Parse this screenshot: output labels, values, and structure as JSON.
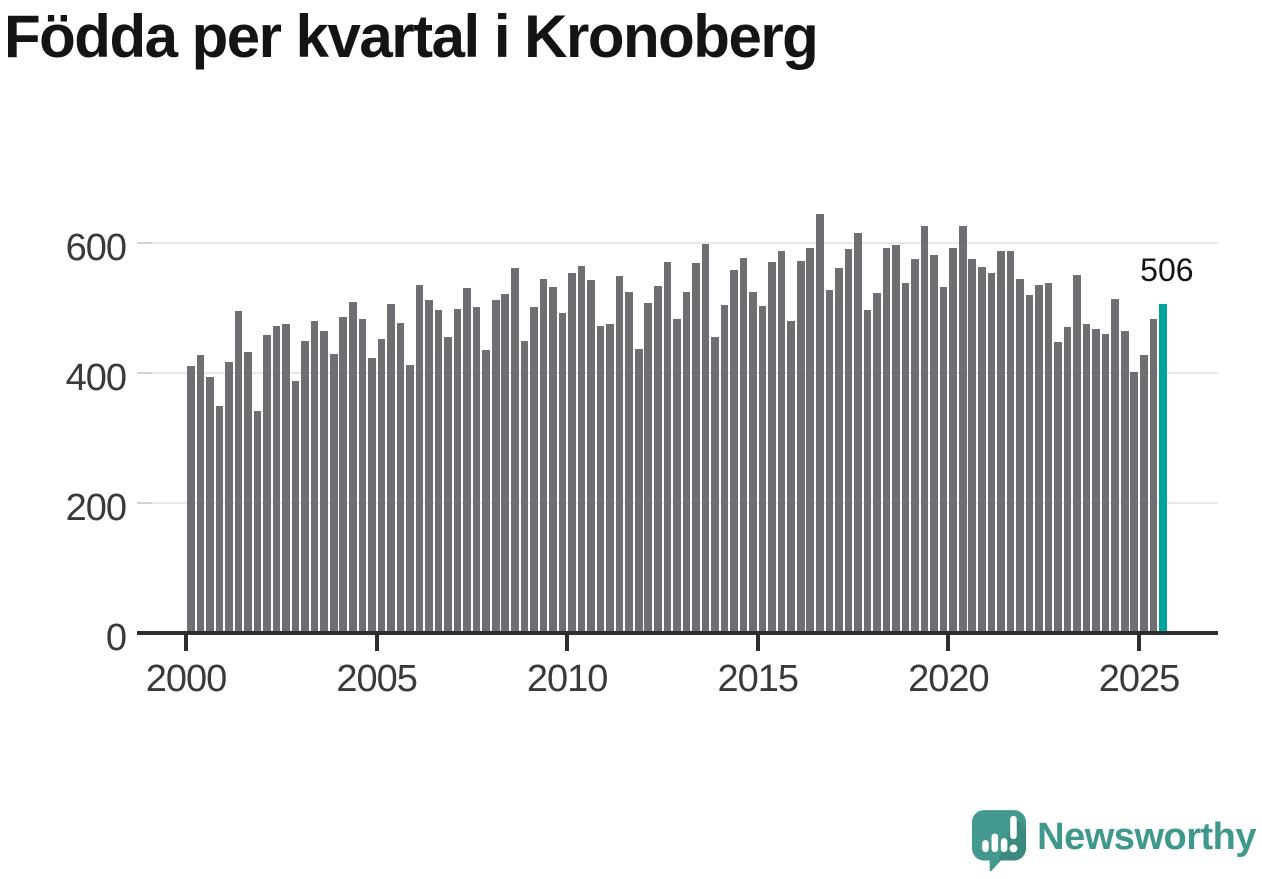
{
  "title": "Födda per kvartal i Kronoberg",
  "annotation": {
    "last_value_label": "506"
  },
  "branding": {
    "wordmark": "Newsworthy",
    "icon": "newsworthy-chart-bubble-icon"
  },
  "colors": {
    "bar": "#6e6e73",
    "highlight": "#00a49b",
    "grid": "#e8e8e8",
    "tick_dash": "#d2d2d2",
    "axis": "#2e2e2e",
    "tick_label": "#3a3a3a",
    "text": "#141414",
    "brand": "#3f988c"
  },
  "chart_data": {
    "type": "bar",
    "title": "Födda per kvartal i Kronoberg",
    "frequency": "quarterly",
    "x_start": "2000-Q1",
    "x_end": "2025-Q3",
    "values": [
      410,
      427,
      394,
      349,
      417,
      495,
      433,
      342,
      459,
      473,
      475,
      388,
      449,
      480,
      464,
      429,
      486,
      509,
      483,
      423,
      452,
      506,
      477,
      412,
      536,
      512,
      497,
      455,
      499,
      530,
      501,
      435,
      512,
      521,
      562,
      449,
      502,
      545,
      533,
      493,
      554,
      565,
      543,
      472,
      476,
      549,
      524,
      437,
      508,
      534,
      570,
      483,
      525,
      569,
      598,
      455,
      504,
      559,
      577,
      525,
      503,
      570,
      588,
      480,
      573,
      593,
      644,
      527,
      562,
      590,
      615,
      497,
      523,
      592,
      597,
      538,
      575,
      626,
      582,
      533,
      592,
      626,
      576,
      563,
      554,
      587,
      588,
      545,
      520,
      536,
      539,
      447,
      471,
      551,
      476,
      467,
      460,
      514,
      465,
      401,
      428,
      483,
      506
    ],
    "highlight_last": true,
    "highlight_last_value": 506,
    "x_tick_labels": [
      "2000",
      "2005",
      "2010",
      "2015",
      "2020",
      "2025"
    ],
    "y_tick_labels": [
      "0",
      "200",
      "400",
      "600"
    ],
    "y_tick_values": [
      0,
      200,
      400,
      600
    ],
    "ylim": [
      0,
      660
    ],
    "grid": "horizontal-only",
    "legend": "none",
    "bar_color": "#6e6e73",
    "highlight_color": "#00a49b"
  }
}
